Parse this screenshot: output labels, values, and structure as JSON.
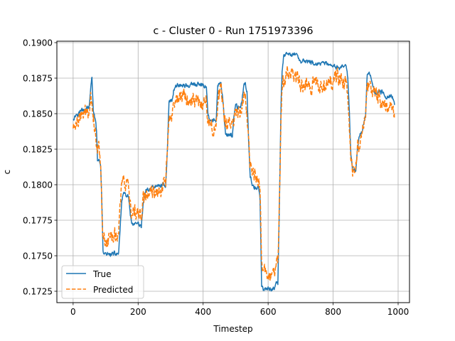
{
  "chart_data": {
    "type": "line",
    "title": "c - Cluster 0 - Run 1751973396",
    "xlabel": "Timestep",
    "ylabel": "c",
    "xlim": [
      -50,
      1035
    ],
    "ylim": [
      0.1717,
      0.1901
    ],
    "xticks": [
      0,
      200,
      400,
      600,
      800,
      1000
    ],
    "yticks": [
      0.1725,
      0.175,
      0.1775,
      0.18,
      0.1825,
      0.185,
      0.1875,
      0.19
    ],
    "ytick_labels": [
      "0.1725",
      "0.1750",
      "0.1775",
      "0.1800",
      "0.1825",
      "0.1850",
      "0.1875",
      "0.1900"
    ],
    "grid": true,
    "legend_position": "lower-left",
    "n_points": 990,
    "series": [
      {
        "name": "True",
        "color": "#1f77b4",
        "style": "solid",
        "knots": [
          [
            0,
            0.1847
          ],
          [
            10,
            0.185
          ],
          [
            20,
            0.1852
          ],
          [
            35,
            0.1853
          ],
          [
            50,
            0.1855
          ],
          [
            55,
            0.187
          ],
          [
            58,
            0.1876
          ],
          [
            62,
            0.1852
          ],
          [
            68,
            0.1845
          ],
          [
            72,
            0.1838
          ],
          [
            75,
            0.1818
          ],
          [
            82,
            0.1815
          ],
          [
            85,
            0.1812
          ],
          [
            88,
            0.179
          ],
          [
            92,
            0.1752
          ],
          [
            100,
            0.1751
          ],
          [
            130,
            0.1751
          ],
          [
            140,
            0.1752
          ],
          [
            145,
            0.177
          ],
          [
            150,
            0.179
          ],
          [
            155,
            0.1793
          ],
          [
            170,
            0.1792
          ],
          [
            175,
            0.178
          ],
          [
            180,
            0.1772
          ],
          [
            200,
            0.1772
          ],
          [
            210,
            0.177
          ],
          [
            215,
            0.1785
          ],
          [
            222,
            0.1795
          ],
          [
            240,
            0.1798
          ],
          [
            280,
            0.18
          ],
          [
            285,
            0.18
          ],
          [
            290,
            0.1825
          ],
          [
            295,
            0.1858
          ],
          [
            305,
            0.186
          ],
          [
            310,
            0.1868
          ],
          [
            320,
            0.187
          ],
          [
            370,
            0.187
          ],
          [
            390,
            0.187
          ],
          [
            410,
            0.187
          ],
          [
            415,
            0.185
          ],
          [
            420,
            0.1845
          ],
          [
            440,
            0.1845
          ],
          [
            445,
            0.187
          ],
          [
            455,
            0.187
          ],
          [
            460,
            0.186
          ],
          [
            465,
            0.1845
          ],
          [
            470,
            0.1835
          ],
          [
            490,
            0.1835
          ],
          [
            495,
            0.185
          ],
          [
            500,
            0.1855
          ],
          [
            515,
            0.1855
          ],
          [
            520,
            0.186
          ],
          [
            525,
            0.187
          ],
          [
            530,
            0.1872
          ],
          [
            535,
            0.1865
          ],
          [
            540,
            0.183
          ],
          [
            545,
            0.1805
          ],
          [
            555,
            0.1798
          ],
          [
            570,
            0.1798
          ],
          [
            575,
            0.179
          ],
          [
            580,
            0.173
          ],
          [
            585,
            0.1726
          ],
          [
            620,
            0.1727
          ],
          [
            625,
            0.173
          ],
          [
            630,
            0.173
          ],
          [
            635,
            0.179
          ],
          [
            640,
            0.186
          ],
          [
            643,
            0.188
          ],
          [
            648,
            0.189
          ],
          [
            660,
            0.1891
          ],
          [
            690,
            0.1892
          ],
          [
            695,
            0.1888
          ],
          [
            700,
            0.1887
          ],
          [
            720,
            0.1887
          ],
          [
            740,
            0.1885
          ],
          [
            760,
            0.1885
          ],
          [
            780,
            0.1885
          ],
          [
            790,
            0.1883
          ],
          [
            840,
            0.1883
          ],
          [
            845,
            0.1875
          ],
          [
            850,
            0.185
          ],
          [
            855,
            0.182
          ],
          [
            860,
            0.181
          ],
          [
            870,
            0.181
          ],
          [
            875,
            0.1825
          ],
          [
            880,
            0.1835
          ],
          [
            890,
            0.1838
          ],
          [
            895,
            0.1845
          ],
          [
            900,
            0.185
          ],
          [
            905,
            0.1878
          ],
          [
            910,
            0.188
          ],
          [
            915,
            0.1878
          ],
          [
            920,
            0.187
          ],
          [
            930,
            0.1865
          ],
          [
            950,
            0.1865
          ],
          [
            960,
            0.1862
          ],
          [
            980,
            0.1863
          ],
          [
            985,
            0.186
          ],
          [
            989,
            0.1855
          ]
        ],
        "noise": 0.0002
      },
      {
        "name": "Predicted",
        "color": "#ff7f0e",
        "style": "dashed",
        "knots": [
          [
            0,
            0.184
          ],
          [
            10,
            0.1843
          ],
          [
            20,
            0.1845
          ],
          [
            35,
            0.185
          ],
          [
            50,
            0.1853
          ],
          [
            55,
            0.1862
          ],
          [
            58,
            0.186
          ],
          [
            62,
            0.1848
          ],
          [
            68,
            0.1838
          ],
          [
            72,
            0.183
          ],
          [
            75,
            0.1825
          ],
          [
            82,
            0.1825
          ],
          [
            85,
            0.1815
          ],
          [
            88,
            0.179
          ],
          [
            92,
            0.1762
          ],
          [
            100,
            0.1762
          ],
          [
            130,
            0.1765
          ],
          [
            140,
            0.1765
          ],
          [
            145,
            0.179
          ],
          [
            150,
            0.1802
          ],
          [
            155,
            0.1803
          ],
          [
            170,
            0.1795
          ],
          [
            175,
            0.1785
          ],
          [
            180,
            0.1778
          ],
          [
            200,
            0.178
          ],
          [
            210,
            0.1778
          ],
          [
            215,
            0.179
          ],
          [
            222,
            0.1792
          ],
          [
            240,
            0.1793
          ],
          [
            280,
            0.18
          ],
          [
            285,
            0.18
          ],
          [
            290,
            0.183
          ],
          [
            295,
            0.185
          ],
          [
            305,
            0.1848
          ],
          [
            310,
            0.1858
          ],
          [
            320,
            0.1862
          ],
          [
            370,
            0.186
          ],
          [
            390,
            0.1858
          ],
          [
            410,
            0.186
          ],
          [
            415,
            0.1848
          ],
          [
            420,
            0.1842
          ],
          [
            440,
            0.184
          ],
          [
            445,
            0.1862
          ],
          [
            455,
            0.1865
          ],
          [
            460,
            0.1855
          ],
          [
            465,
            0.1845
          ],
          [
            470,
            0.1843
          ],
          [
            490,
            0.1843
          ],
          [
            495,
            0.1848
          ],
          [
            500,
            0.1853
          ],
          [
            515,
            0.1852
          ],
          [
            520,
            0.186
          ],
          [
            525,
            0.1865
          ],
          [
            530,
            0.1862
          ],
          [
            535,
            0.1845
          ],
          [
            540,
            0.1825
          ],
          [
            545,
            0.1812
          ],
          [
            555,
            0.1808
          ],
          [
            570,
            0.1805
          ],
          [
            575,
            0.1795
          ],
          [
            580,
            0.1745
          ],
          [
            585,
            0.1738
          ],
          [
            620,
            0.1738
          ],
          [
            625,
            0.1742
          ],
          [
            630,
            0.1745
          ],
          [
            635,
            0.179
          ],
          [
            640,
            0.185
          ],
          [
            643,
            0.1868
          ],
          [
            648,
            0.1872
          ],
          [
            660,
            0.1878
          ],
          [
            690,
            0.1878
          ],
          [
            695,
            0.1875
          ],
          [
            700,
            0.187
          ],
          [
            720,
            0.1872
          ],
          [
            740,
            0.187
          ],
          [
            760,
            0.187
          ],
          [
            780,
            0.1875
          ],
          [
            790,
            0.1873
          ],
          [
            840,
            0.1873
          ],
          [
            845,
            0.1865
          ],
          [
            850,
            0.184
          ],
          [
            855,
            0.1815
          ],
          [
            860,
            0.181
          ],
          [
            870,
            0.1812
          ],
          [
            875,
            0.1825
          ],
          [
            880,
            0.183
          ],
          [
            890,
            0.1838
          ],
          [
            895,
            0.1842
          ],
          [
            900,
            0.185
          ],
          [
            905,
            0.187
          ],
          [
            910,
            0.1872
          ],
          [
            915,
            0.187
          ],
          [
            920,
            0.1865
          ],
          [
            930,
            0.1862
          ],
          [
            950,
            0.186
          ],
          [
            960,
            0.1857
          ],
          [
            980,
            0.1855
          ],
          [
            985,
            0.185
          ],
          [
            989,
            0.1848
          ]
        ],
        "noise": 0.0007
      }
    ]
  }
}
